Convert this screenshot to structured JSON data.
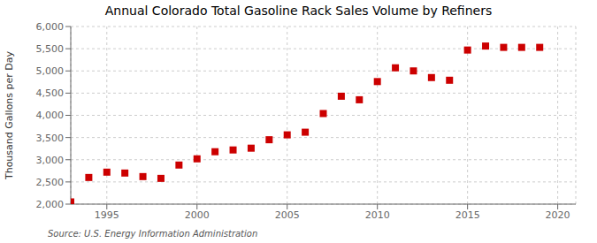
{
  "chart_data": {
    "type": "scatter",
    "title": "Annual Colorado Total Gasoline Rack Sales Volume by Refiners",
    "ylabel": "Thousand Gallons per Day",
    "annotations": [
      "Source: U.S. Energy Information Administration"
    ],
    "x": [
      1993,
      1994,
      1995,
      1996,
      1997,
      1998,
      1999,
      2000,
      2001,
      2002,
      2003,
      2004,
      2005,
      2006,
      2007,
      2008,
      2009,
      2010,
      2011,
      2012,
      2013,
      2014,
      2015,
      2016,
      2017,
      2018,
      2019
    ],
    "values": [
      2050,
      2600,
      2720,
      2700,
      2620,
      2580,
      2880,
      3020,
      3180,
      3220,
      3260,
      3450,
      3560,
      3620,
      4040,
      4430,
      4350,
      4760,
      5070,
      5000,
      4850,
      4790,
      5470,
      5560,
      5530,
      5530,
      5530
    ],
    "color": "#cc0000",
    "marker": "square",
    "xlim": [
      1993,
      2021
    ],
    "xticks": [
      1995,
      2000,
      2005,
      2010,
      2015,
      2020
    ],
    "ylim": [
      2000,
      6000
    ],
    "yticks": [
      {
        "value": 2000,
        "label": "2,000"
      },
      {
        "value": 2500,
        "label": "2,500"
      },
      {
        "value": 3000,
        "label": "3,000"
      },
      {
        "value": 3500,
        "label": "3,500"
      },
      {
        "value": 4000,
        "label": "4,000"
      },
      {
        "value": 4500,
        "label": "4,500"
      },
      {
        "value": 5000,
        "label": "5,000"
      },
      {
        "value": 5500,
        "label": "5,500"
      },
      {
        "value": 6000,
        "label": "6,000"
      }
    ],
    "grid": true
  }
}
